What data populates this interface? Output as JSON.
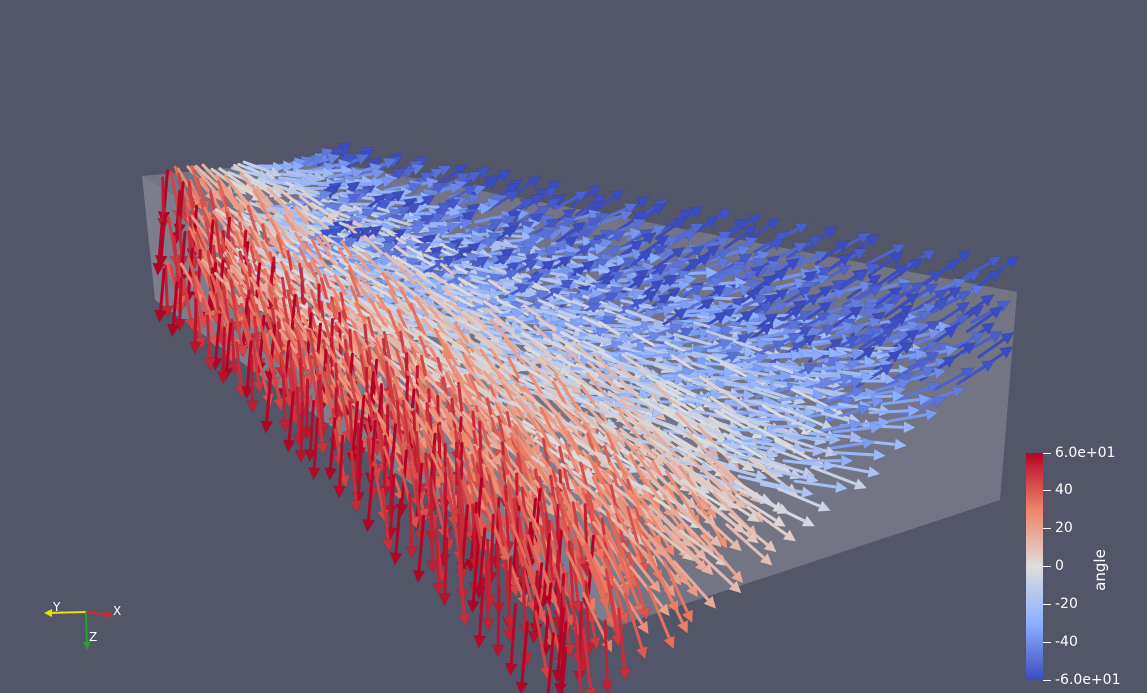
{
  "scalar_bar": {
    "title": "angle",
    "ticks": [
      "6.0e+01",
      "40",
      "20",
      "0",
      "-20",
      "-40",
      "-6.0e+01"
    ],
    "range": [
      -60,
      60
    ],
    "colors": {
      "low": "#3b4cc0",
      "mid": "#dddddd",
      "high": "#b40426"
    }
  },
  "orientation_axes": {
    "x_label": "X",
    "y_label": "Y",
    "z_label": "Z",
    "x_color": "#d62728",
    "y_color": "#e6e600",
    "z_color": "#2ca02c"
  },
  "scene": {
    "background": "#535669",
    "glyph_type": "arrow-icon",
    "box_color": "#8e909c"
  }
}
